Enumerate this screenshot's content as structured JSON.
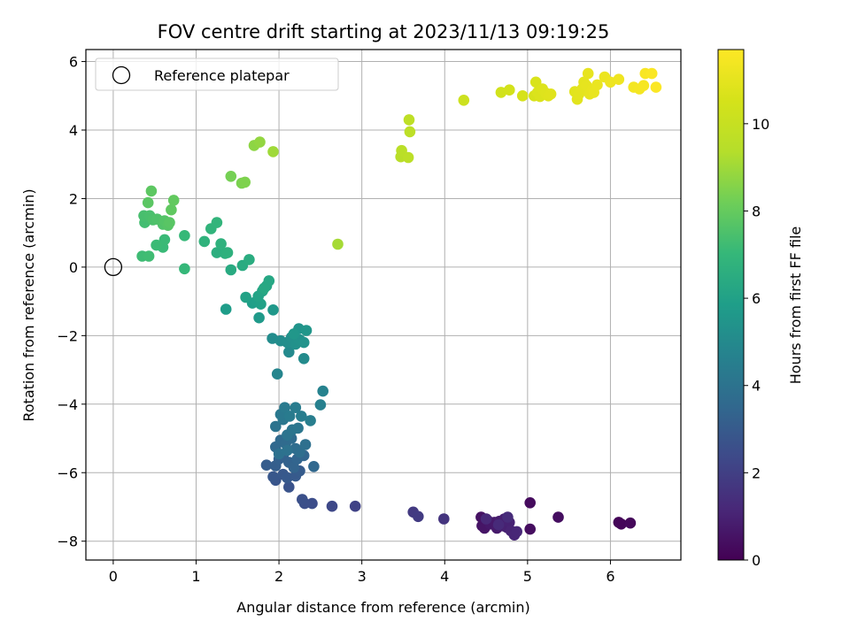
{
  "chart_data": {
    "type": "scatter",
    "title": "FOV centre drift starting at 2023/11/13 09:19:25",
    "xlabel": "Angular distance from reference (arcmin)",
    "ylabel": "Rotation from reference (arcmin)",
    "xlim": [
      -0.33,
      6.85
    ],
    "ylim": [
      -8.55,
      6.35
    ],
    "xticks": [
      0,
      1,
      2,
      3,
      4,
      5,
      6
    ],
    "yticks": [
      -8,
      -6,
      -4,
      -2,
      0,
      2,
      4,
      6
    ],
    "grid": true,
    "legend": {
      "placement": "top-left",
      "entries": [
        {
          "label": "Reference platepar",
          "marker": "open-circle"
        }
      ]
    },
    "reference_point": {
      "x": 0,
      "y": 0
    },
    "colorbar": {
      "label": "Hours from first FF file",
      "colormap": "viridis",
      "range": [
        0,
        11.7
      ],
      "ticks": [
        0,
        2,
        4,
        6,
        8,
        10
      ]
    },
    "points": [
      {
        "x": 6.1,
        "y": -7.45,
        "h": 0.1
      },
      {
        "x": 6.13,
        "y": -7.5,
        "h": 0.15
      },
      {
        "x": 6.24,
        "y": -7.47,
        "h": 0.2
      },
      {
        "x": 5.03,
        "y": -6.88,
        "h": 0.3
      },
      {
        "x": 5.03,
        "y": -7.65,
        "h": 0.35
      },
      {
        "x": 5.37,
        "y": -7.3,
        "h": 0.4
      },
      {
        "x": 4.44,
        "y": -7.3,
        "h": 0.5
      },
      {
        "x": 4.45,
        "y": -7.55,
        "h": 0.55
      },
      {
        "x": 4.48,
        "y": -7.62,
        "h": 0.6
      },
      {
        "x": 4.52,
        "y": -7.4,
        "h": 0.65
      },
      {
        "x": 4.55,
        "y": -7.5,
        "h": 0.7
      },
      {
        "x": 4.6,
        "y": -7.45,
        "h": 0.72
      },
      {
        "x": 4.63,
        "y": -7.62,
        "h": 0.75
      },
      {
        "x": 4.66,
        "y": -7.42,
        "h": 0.8
      },
      {
        "x": 4.7,
        "y": -7.55,
        "h": 0.85
      },
      {
        "x": 4.72,
        "y": -7.35,
        "h": 0.9
      },
      {
        "x": 4.75,
        "y": -7.6,
        "h": 0.95
      },
      {
        "x": 4.78,
        "y": -7.45,
        "h": 1.0
      },
      {
        "x": 4.8,
        "y": -7.7,
        "h": 1.05
      },
      {
        "x": 4.84,
        "y": -7.82,
        "h": 1.1
      },
      {
        "x": 4.87,
        "y": -7.72,
        "h": 1.15
      },
      {
        "x": 4.5,
        "y": -7.35,
        "h": 1.2
      },
      {
        "x": 4.65,
        "y": -7.52,
        "h": 1.25
      },
      {
        "x": 4.76,
        "y": -7.3,
        "h": 1.3
      },
      {
        "x": 3.99,
        "y": -7.35,
        "h": 1.6
      },
      {
        "x": 3.62,
        "y": -7.15,
        "h": 1.8
      },
      {
        "x": 3.68,
        "y": -7.28,
        "h": 1.85
      },
      {
        "x": 2.92,
        "y": -6.98,
        "h": 2.1
      },
      {
        "x": 2.64,
        "y": -6.98,
        "h": 2.3
      },
      {
        "x": 2.4,
        "y": -6.9,
        "h": 2.5
      },
      {
        "x": 2.31,
        "y": -6.9,
        "h": 2.55
      },
      {
        "x": 2.28,
        "y": -6.78,
        "h": 2.6
      },
      {
        "x": 2.12,
        "y": -6.42,
        "h": 2.7
      },
      {
        "x": 1.96,
        "y": -6.22,
        "h": 2.8
      },
      {
        "x": 1.93,
        "y": -6.12,
        "h": 2.85
      },
      {
        "x": 2.05,
        "y": -6.05,
        "h": 2.9
      },
      {
        "x": 2.1,
        "y": -6.15,
        "h": 2.95
      },
      {
        "x": 2.2,
        "y": -6.1,
        "h": 3.0
      },
      {
        "x": 2.25,
        "y": -5.95,
        "h": 3.05
      },
      {
        "x": 1.85,
        "y": -5.78,
        "h": 3.1
      },
      {
        "x": 1.96,
        "y": -5.8,
        "h": 3.15
      },
      {
        "x": 2.0,
        "y": -5.6,
        "h": 3.2
      },
      {
        "x": 2.05,
        "y": -5.5,
        "h": 3.25
      },
      {
        "x": 2.12,
        "y": -5.7,
        "h": 3.3
      },
      {
        "x": 2.18,
        "y": -5.85,
        "h": 3.35
      },
      {
        "x": 2.22,
        "y": -5.6,
        "h": 3.4
      },
      {
        "x": 2.3,
        "y": -5.5,
        "h": 3.45
      },
      {
        "x": 2.42,
        "y": -5.82,
        "h": 3.5
      },
      {
        "x": 1.96,
        "y": -5.25,
        "h": 3.55
      },
      {
        "x": 2.02,
        "y": -5.05,
        "h": 3.6
      },
      {
        "x": 2.08,
        "y": -5.15,
        "h": 3.65
      },
      {
        "x": 2.15,
        "y": -5.0,
        "h": 3.7
      },
      {
        "x": 2.2,
        "y": -5.3,
        "h": 3.75
      },
      {
        "x": 2.25,
        "y": -5.4,
        "h": 3.8
      },
      {
        "x": 2.32,
        "y": -5.18,
        "h": 3.85
      },
      {
        "x": 2.0,
        "y": -5.45,
        "h": 3.9
      },
      {
        "x": 2.1,
        "y": -5.35,
        "h": 3.95
      },
      {
        "x": 1.96,
        "y": -4.65,
        "h": 4.0
      },
      {
        "x": 2.1,
        "y": -4.9,
        "h": 4.05
      },
      {
        "x": 2.16,
        "y": -4.75,
        "h": 4.1
      },
      {
        "x": 2.23,
        "y": -4.7,
        "h": 4.15
      },
      {
        "x": 2.05,
        "y": -4.45,
        "h": 4.2
      },
      {
        "x": 2.02,
        "y": -4.3,
        "h": 4.25
      },
      {
        "x": 2.07,
        "y": -4.1,
        "h": 4.3
      },
      {
        "x": 2.13,
        "y": -4.35,
        "h": 4.35
      },
      {
        "x": 2.2,
        "y": -4.1,
        "h": 4.4
      },
      {
        "x": 2.27,
        "y": -4.35,
        "h": 4.45
      },
      {
        "x": 2.38,
        "y": -4.48,
        "h": 4.5
      },
      {
        "x": 2.5,
        "y": -4.02,
        "h": 4.6
      },
      {
        "x": 2.53,
        "y": -3.62,
        "h": 4.7
      },
      {
        "x": 1.98,
        "y": -3.12,
        "h": 4.8
      },
      {
        "x": 2.12,
        "y": -2.48,
        "h": 5.0
      },
      {
        "x": 2.3,
        "y": -2.67,
        "h": 5.05
      },
      {
        "x": 1.92,
        "y": -2.08,
        "h": 5.1
      },
      {
        "x": 2.02,
        "y": -2.15,
        "h": 5.15
      },
      {
        "x": 2.1,
        "y": -2.2,
        "h": 5.2
      },
      {
        "x": 2.15,
        "y": -2.05,
        "h": 5.25
      },
      {
        "x": 2.2,
        "y": -2.25,
        "h": 5.3
      },
      {
        "x": 2.25,
        "y": -2.12,
        "h": 5.35
      },
      {
        "x": 2.3,
        "y": -2.2,
        "h": 5.4
      },
      {
        "x": 2.24,
        "y": -1.8,
        "h": 5.45
      },
      {
        "x": 2.33,
        "y": -1.85,
        "h": 5.5
      },
      {
        "x": 2.18,
        "y": -1.95,
        "h": 5.55
      },
      {
        "x": 1.93,
        "y": -1.25,
        "h": 5.6
      },
      {
        "x": 1.76,
        "y": -1.48,
        "h": 5.7
      },
      {
        "x": 1.36,
        "y": -1.23,
        "h": 5.8
      },
      {
        "x": 1.68,
        "y": -1.05,
        "h": 5.9
      },
      {
        "x": 1.73,
        "y": -1.0,
        "h": 5.95
      },
      {
        "x": 1.78,
        "y": -1.08,
        "h": 6.0
      },
      {
        "x": 1.6,
        "y": -0.88,
        "h": 6.05
      },
      {
        "x": 1.75,
        "y": -0.85,
        "h": 6.1
      },
      {
        "x": 1.8,
        "y": -0.7,
        "h": 6.15
      },
      {
        "x": 1.85,
        "y": -0.55,
        "h": 6.2
      },
      {
        "x": 1.88,
        "y": -0.4,
        "h": 6.25
      },
      {
        "x": 1.82,
        "y": -0.62,
        "h": 6.3
      },
      {
        "x": 1.42,
        "y": -0.08,
        "h": 6.4
      },
      {
        "x": 1.56,
        "y": 0.05,
        "h": 6.45
      },
      {
        "x": 1.64,
        "y": 0.22,
        "h": 6.5
      },
      {
        "x": 1.25,
        "y": 0.42,
        "h": 6.6
      },
      {
        "x": 1.35,
        "y": 0.4,
        "h": 6.65
      },
      {
        "x": 1.38,
        "y": 0.42,
        "h": 6.7
      },
      {
        "x": 1.3,
        "y": 0.68,
        "h": 6.75
      },
      {
        "x": 1.1,
        "y": 0.75,
        "h": 6.8
      },
      {
        "x": 1.18,
        "y": 1.12,
        "h": 6.85
      },
      {
        "x": 1.25,
        "y": 1.3,
        "h": 6.9
      },
      {
        "x": 0.86,
        "y": -0.05,
        "h": 7.0
      },
      {
        "x": 0.86,
        "y": 0.92,
        "h": 7.05
      },
      {
        "x": 0.6,
        "y": 0.58,
        "h": 7.1
      },
      {
        "x": 0.62,
        "y": 0.8,
        "h": 7.12
      },
      {
        "x": 0.52,
        "y": 0.64,
        "h": 7.15
      },
      {
        "x": 0.35,
        "y": 0.32,
        "h": 7.2
      },
      {
        "x": 0.43,
        "y": 0.32,
        "h": 7.25
      },
      {
        "x": 0.38,
        "y": 1.3,
        "h": 7.3
      },
      {
        "x": 0.4,
        "y": 1.45,
        "h": 7.35
      },
      {
        "x": 0.37,
        "y": 1.5,
        "h": 7.4
      },
      {
        "x": 0.44,
        "y": 1.5,
        "h": 7.45
      },
      {
        "x": 0.48,
        "y": 1.38,
        "h": 7.5
      },
      {
        "x": 0.53,
        "y": 1.4,
        "h": 7.55
      },
      {
        "x": 0.6,
        "y": 1.25,
        "h": 7.6
      },
      {
        "x": 0.62,
        "y": 1.35,
        "h": 7.65
      },
      {
        "x": 0.66,
        "y": 1.22,
        "h": 7.7
      },
      {
        "x": 0.68,
        "y": 1.3,
        "h": 7.75
      },
      {
        "x": 0.42,
        "y": 1.88,
        "h": 7.8
      },
      {
        "x": 0.46,
        "y": 2.22,
        "h": 7.85
      },
      {
        "x": 0.7,
        "y": 1.67,
        "h": 7.9
      },
      {
        "x": 0.73,
        "y": 1.95,
        "h": 7.95
      },
      {
        "x": 1.42,
        "y": 2.65,
        "h": 8.3
      },
      {
        "x": 1.55,
        "y": 2.45,
        "h": 8.4
      },
      {
        "x": 1.59,
        "y": 2.48,
        "h": 8.45
      },
      {
        "x": 1.7,
        "y": 3.55,
        "h": 8.7
      },
      {
        "x": 1.77,
        "y": 3.65,
        "h": 8.8
      },
      {
        "x": 1.93,
        "y": 3.37,
        "h": 9.0
      },
      {
        "x": 2.71,
        "y": 0.67,
        "h": 9.1
      },
      {
        "x": 3.47,
        "y": 3.22,
        "h": 9.5
      },
      {
        "x": 3.48,
        "y": 3.4,
        "h": 9.55
      },
      {
        "x": 3.56,
        "y": 3.2,
        "h": 9.6
      },
      {
        "x": 3.58,
        "y": 3.95,
        "h": 9.65
      },
      {
        "x": 3.57,
        "y": 4.3,
        "h": 9.7
      },
      {
        "x": 4.23,
        "y": 4.87,
        "h": 10.2
      },
      {
        "x": 4.68,
        "y": 5.1,
        "h": 10.4
      },
      {
        "x": 4.78,
        "y": 5.17,
        "h": 10.45
      },
      {
        "x": 4.94,
        "y": 5.0,
        "h": 10.55
      },
      {
        "x": 5.08,
        "y": 5.0,
        "h": 10.6
      },
      {
        "x": 5.1,
        "y": 5.4,
        "h": 10.65
      },
      {
        "x": 5.12,
        "y": 5.1,
        "h": 10.7
      },
      {
        "x": 5.15,
        "y": 4.98,
        "h": 10.72
      },
      {
        "x": 5.18,
        "y": 5.2,
        "h": 10.75
      },
      {
        "x": 5.22,
        "y": 5.08,
        "h": 10.8
      },
      {
        "x": 5.25,
        "y": 5.0,
        "h": 10.82
      },
      {
        "x": 5.28,
        "y": 5.05,
        "h": 10.85
      },
      {
        "x": 5.57,
        "y": 5.12,
        "h": 10.9
      },
      {
        "x": 5.6,
        "y": 4.9,
        "h": 10.92
      },
      {
        "x": 5.62,
        "y": 5.05,
        "h": 10.95
      },
      {
        "x": 5.66,
        "y": 5.2,
        "h": 10.97
      },
      {
        "x": 5.68,
        "y": 5.4,
        "h": 11.0
      },
      {
        "x": 5.71,
        "y": 5.3,
        "h": 11.02
      },
      {
        "x": 5.73,
        "y": 5.65,
        "h": 11.05
      },
      {
        "x": 5.75,
        "y": 5.05,
        "h": 11.07
      },
      {
        "x": 5.78,
        "y": 5.18,
        "h": 11.1
      },
      {
        "x": 5.8,
        "y": 5.1,
        "h": 11.12
      },
      {
        "x": 5.84,
        "y": 5.32,
        "h": 11.15
      },
      {
        "x": 5.93,
        "y": 5.55,
        "h": 11.2
      },
      {
        "x": 6.0,
        "y": 5.4,
        "h": 11.25
      },
      {
        "x": 6.1,
        "y": 5.48,
        "h": 11.3
      },
      {
        "x": 6.28,
        "y": 5.25,
        "h": 11.4
      },
      {
        "x": 6.35,
        "y": 5.2,
        "h": 11.45
      },
      {
        "x": 6.4,
        "y": 5.3,
        "h": 11.5
      },
      {
        "x": 6.42,
        "y": 5.65,
        "h": 11.55
      },
      {
        "x": 6.5,
        "y": 5.65,
        "h": 11.6
      },
      {
        "x": 6.55,
        "y": 5.25,
        "h": 11.65
      }
    ]
  }
}
